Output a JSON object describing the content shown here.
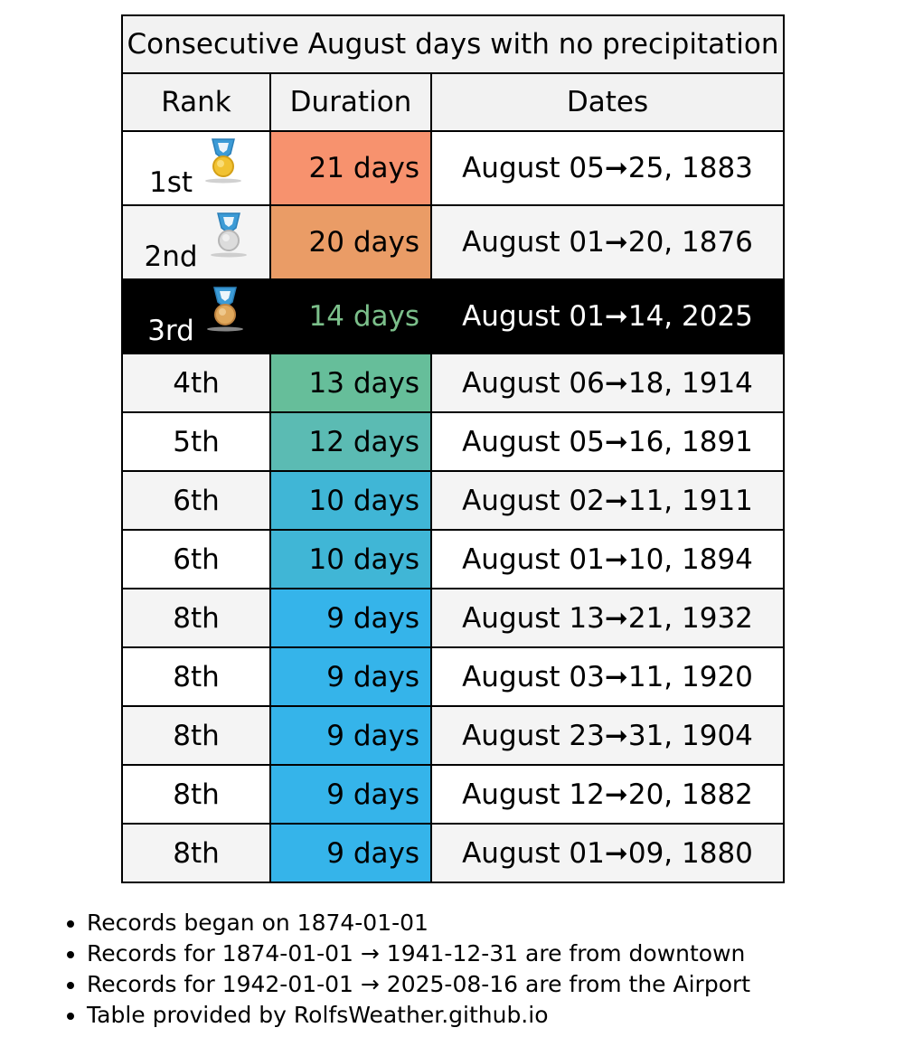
{
  "table": {
    "title": "Consecutive August days with no precipitation",
    "headers": {
      "rank": "Rank",
      "duration": "Duration",
      "dates": "Dates"
    },
    "rows": [
      {
        "rank": "1st",
        "medal": "gold",
        "duration": "21 days",
        "dates": "August 05➞25, 1883",
        "color": "#f7926e"
      },
      {
        "rank": "2nd",
        "medal": "silver",
        "duration": "20 days",
        "dates": "August 01➞20, 1876",
        "color": "#ea9c66"
      },
      {
        "rank": "3rd",
        "medal": "bronze",
        "duration": "14 days",
        "dates": "August 01➞14, 2025",
        "color": "#000000",
        "current": true
      },
      {
        "rank": "4th",
        "duration": "13 days",
        "dates": "August 06➞18, 1914",
        "color": "#66be9a"
      },
      {
        "rank": "5th",
        "duration": "12 days",
        "dates": "August 05➞16, 1891",
        "color": "#5bbbb3"
      },
      {
        "rank": "6th",
        "duration": "10 days",
        "dates": "August 02➞11, 1911",
        "color": "#40b6d6"
      },
      {
        "rank": "6th",
        "duration": "10 days",
        "dates": "August 01➞10, 1894",
        "color": "#40b6d6"
      },
      {
        "rank": "8th",
        "duration": "9 days",
        "dates": "August 13➞21, 1932",
        "color": "#35b4ea"
      },
      {
        "rank": "8th",
        "duration": "9 days",
        "dates": "August 03➞11, 1920",
        "color": "#35b4ea"
      },
      {
        "rank": "8th",
        "duration": "9 days",
        "dates": "August 23➞31, 1904",
        "color": "#35b4ea"
      },
      {
        "rank": "8th",
        "duration": "9 days",
        "dates": "August 12➞20, 1882",
        "color": "#35b4ea"
      },
      {
        "rank": "8th",
        "duration": "9 days",
        "dates": "August 01➞09, 1880",
        "color": "#35b4ea"
      }
    ]
  },
  "notes": [
    "Records began on 1874-01-01",
    "Records for 1874-01-01 → 1941-12-31 are from downtown",
    "Records for 1942-01-01 → 2025-08-16 are from the Airport",
    "Table provided by RolfsWeather.github.io"
  ],
  "medal_icons": {
    "gold": "gold-medal-icon",
    "silver": "silver-medal-icon",
    "bronze": "bronze-medal-icon"
  }
}
